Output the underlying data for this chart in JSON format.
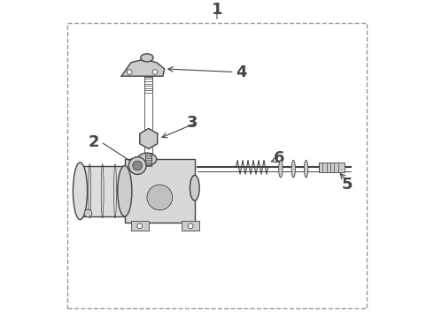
{
  "background_color": "#ffffff",
  "border_color": "#999999",
  "line_color": "#444444",
  "label_fontsize": 13,
  "fig_width": 4.9,
  "fig_height": 3.6,
  "dpi": 100
}
